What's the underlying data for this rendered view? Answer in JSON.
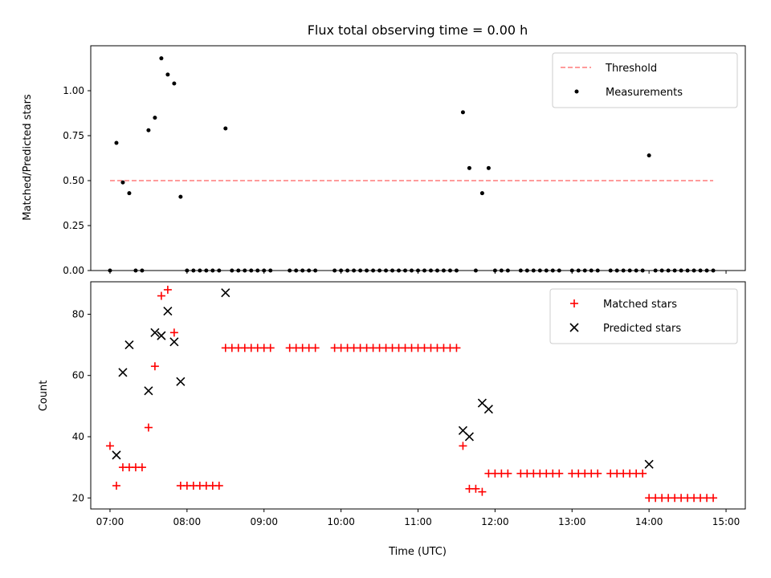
{
  "chart_data": [
    {
      "type": "scatter",
      "title": "Flux total observing time = 0.00 h",
      "xlabel": "",
      "ylabel": "Matched/Predicted stars",
      "xlim": [
        "06:45",
        "15:15"
      ],
      "ylim": [
        0,
        1.25
      ],
      "yticks": [
        "0.00",
        "0.25",
        "0.50",
        "0.75",
        "1.00"
      ],
      "legend_position": "top-right",
      "threshold": {
        "name": "Threshold",
        "value": 0.5,
        "x_range": [
          "07:00",
          "14:50"
        ],
        "color": "#ff7a7a",
        "style": "dashed"
      },
      "series": [
        {
          "name": "Measurements",
          "color": "#000000",
          "marker": "dot",
          "points": [
            [
              "07:00",
              0.0
            ],
            [
              "07:05",
              0.71
            ],
            [
              "07:10",
              0.49
            ],
            [
              "07:15",
              0.43
            ],
            [
              "07:20",
              0.0
            ],
            [
              "07:25",
              0.0
            ],
            [
              "07:30",
              0.78
            ],
            [
              "07:35",
              0.85
            ],
            [
              "07:40",
              1.18
            ],
            [
              "07:45",
              1.09
            ],
            [
              "07:50",
              1.04
            ],
            [
              "07:55",
              0.41
            ],
            [
              "08:00",
              0.0
            ],
            [
              "08:05",
              0.0
            ],
            [
              "08:10",
              0.0
            ],
            [
              "08:15",
              0.0
            ],
            [
              "08:20",
              0.0
            ],
            [
              "08:25",
              0.0
            ],
            [
              "08:30",
              0.79
            ],
            [
              "08:35",
              0.0
            ],
            [
              "08:40",
              0.0
            ],
            [
              "08:45",
              0.0
            ],
            [
              "08:50",
              0.0
            ],
            [
              "08:55",
              0.0
            ],
            [
              "09:00",
              0.0
            ],
            [
              "09:05",
              0.0
            ],
            [
              "09:20",
              0.0
            ],
            [
              "09:25",
              0.0
            ],
            [
              "09:30",
              0.0
            ],
            [
              "09:35",
              0.0
            ],
            [
              "09:40",
              0.0
            ],
            [
              "09:55",
              0.0
            ],
            [
              "10:00",
              0.0
            ],
            [
              "10:05",
              0.0
            ],
            [
              "10:10",
              0.0
            ],
            [
              "10:15",
              0.0
            ],
            [
              "10:20",
              0.0
            ],
            [
              "10:25",
              0.0
            ],
            [
              "10:30",
              0.0
            ],
            [
              "10:35",
              0.0
            ],
            [
              "10:40",
              0.0
            ],
            [
              "10:45",
              0.0
            ],
            [
              "10:50",
              0.0
            ],
            [
              "10:55",
              0.0
            ],
            [
              "11:00",
              0.0
            ],
            [
              "11:05",
              0.0
            ],
            [
              "11:10",
              0.0
            ],
            [
              "11:15",
              0.0
            ],
            [
              "11:20",
              0.0
            ],
            [
              "11:25",
              0.0
            ],
            [
              "11:30",
              0.0
            ],
            [
              "11:35",
              0.88
            ],
            [
              "11:40",
              0.57
            ],
            [
              "11:45",
              0.0
            ],
            [
              "11:50",
              0.43
            ],
            [
              "11:55",
              0.57
            ],
            [
              "12:00",
              0.0
            ],
            [
              "12:05",
              0.0
            ],
            [
              "12:10",
              0.0
            ],
            [
              "12:20",
              0.0
            ],
            [
              "12:25",
              0.0
            ],
            [
              "12:30",
              0.0
            ],
            [
              "12:35",
              0.0
            ],
            [
              "12:40",
              0.0
            ],
            [
              "12:45",
              0.0
            ],
            [
              "12:50",
              0.0
            ],
            [
              "13:00",
              0.0
            ],
            [
              "13:05",
              0.0
            ],
            [
              "13:10",
              0.0
            ],
            [
              "13:15",
              0.0
            ],
            [
              "13:20",
              0.0
            ],
            [
              "13:30",
              0.0
            ],
            [
              "13:35",
              0.0
            ],
            [
              "13:40",
              0.0
            ],
            [
              "13:45",
              0.0
            ],
            [
              "13:50",
              0.0
            ],
            [
              "13:55",
              0.0
            ],
            [
              "14:00",
              0.64
            ],
            [
              "14:05",
              0.0
            ],
            [
              "14:10",
              0.0
            ],
            [
              "14:15",
              0.0
            ],
            [
              "14:20",
              0.0
            ],
            [
              "14:25",
              0.0
            ],
            [
              "14:30",
              0.0
            ],
            [
              "14:35",
              0.0
            ],
            [
              "14:40",
              0.0
            ],
            [
              "14:45",
              0.0
            ],
            [
              "14:50",
              0.0
            ]
          ]
        }
      ]
    },
    {
      "type": "scatter",
      "title": "",
      "xlabel": "Time (UTC)",
      "ylabel": "Count",
      "xlim": [
        "06:45",
        "15:15"
      ],
      "ylim": [
        16.4,
        90.6
      ],
      "yticks": [
        "20",
        "40",
        "60",
        "80"
      ],
      "xticks": [
        "07:00",
        "08:00",
        "09:00",
        "10:00",
        "11:00",
        "12:00",
        "13:00",
        "14:00",
        "15:00"
      ],
      "legend_position": "top-right",
      "series": [
        {
          "name": "Matched stars",
          "color": "#ff0000",
          "marker": "plus",
          "points": [
            [
              "07:00",
              37
            ],
            [
              "07:05",
              24
            ],
            [
              "07:10",
              30
            ],
            [
              "07:15",
              30
            ],
            [
              "07:20",
              30
            ],
            [
              "07:25",
              30
            ],
            [
              "07:30",
              43
            ],
            [
              "07:35",
              63
            ],
            [
              "07:40",
              86
            ],
            [
              "07:45",
              88
            ],
            [
              "07:50",
              74
            ],
            [
              "07:55",
              24
            ],
            [
              "08:00",
              24
            ],
            [
              "08:05",
              24
            ],
            [
              "08:10",
              24
            ],
            [
              "08:15",
              24
            ],
            [
              "08:20",
              24
            ],
            [
              "08:25",
              24
            ],
            [
              "08:30",
              69
            ],
            [
              "08:35",
              69
            ],
            [
              "08:40",
              69
            ],
            [
              "08:45",
              69
            ],
            [
              "08:50",
              69
            ],
            [
              "08:55",
              69
            ],
            [
              "09:00",
              69
            ],
            [
              "09:05",
              69
            ],
            [
              "09:20",
              69
            ],
            [
              "09:25",
              69
            ],
            [
              "09:30",
              69
            ],
            [
              "09:35",
              69
            ],
            [
              "09:40",
              69
            ],
            [
              "09:55",
              69
            ],
            [
              "10:00",
              69
            ],
            [
              "10:05",
              69
            ],
            [
              "10:10",
              69
            ],
            [
              "10:15",
              69
            ],
            [
              "10:20",
              69
            ],
            [
              "10:25",
              69
            ],
            [
              "10:30",
              69
            ],
            [
              "10:35",
              69
            ],
            [
              "10:40",
              69
            ],
            [
              "10:45",
              69
            ],
            [
              "10:50",
              69
            ],
            [
              "10:55",
              69
            ],
            [
              "11:00",
              69
            ],
            [
              "11:05",
              69
            ],
            [
              "11:10",
              69
            ],
            [
              "11:15",
              69
            ],
            [
              "11:20",
              69
            ],
            [
              "11:25",
              69
            ],
            [
              "11:30",
              69
            ],
            [
              "11:35",
              37
            ],
            [
              "11:40",
              23
            ],
            [
              "11:45",
              23
            ],
            [
              "11:50",
              22
            ],
            [
              "11:55",
              28
            ],
            [
              "12:00",
              28
            ],
            [
              "12:05",
              28
            ],
            [
              "12:10",
              28
            ],
            [
              "12:20",
              28
            ],
            [
              "12:25",
              28
            ],
            [
              "12:30",
              28
            ],
            [
              "12:35",
              28
            ],
            [
              "12:40",
              28
            ],
            [
              "12:45",
              28
            ],
            [
              "12:50",
              28
            ],
            [
              "13:00",
              28
            ],
            [
              "13:05",
              28
            ],
            [
              "13:10",
              28
            ],
            [
              "13:15",
              28
            ],
            [
              "13:20",
              28
            ],
            [
              "13:30",
              28
            ],
            [
              "13:35",
              28
            ],
            [
              "13:40",
              28
            ],
            [
              "13:45",
              28
            ],
            [
              "13:50",
              28
            ],
            [
              "13:55",
              28
            ],
            [
              "14:00",
              20
            ],
            [
              "14:05",
              20
            ],
            [
              "14:10",
              20
            ],
            [
              "14:15",
              20
            ],
            [
              "14:20",
              20
            ],
            [
              "14:25",
              20
            ],
            [
              "14:30",
              20
            ],
            [
              "14:35",
              20
            ],
            [
              "14:40",
              20
            ],
            [
              "14:45",
              20
            ],
            [
              "14:50",
              20
            ]
          ]
        },
        {
          "name": "Predicted stars",
          "color": "#000000",
          "marker": "x",
          "points": [
            [
              "07:05",
              34
            ],
            [
              "07:10",
              61
            ],
            [
              "07:15",
              70
            ],
            [
              "07:30",
              55
            ],
            [
              "07:35",
              74
            ],
            [
              "07:40",
              73
            ],
            [
              "07:45",
              81
            ],
            [
              "07:50",
              71
            ],
            [
              "07:55",
              58
            ],
            [
              "08:30",
              87
            ],
            [
              "11:35",
              42
            ],
            [
              "11:40",
              40
            ],
            [
              "11:50",
              51
            ],
            [
              "11:55",
              49
            ],
            [
              "14:00",
              31
            ]
          ]
        }
      ]
    }
  ]
}
